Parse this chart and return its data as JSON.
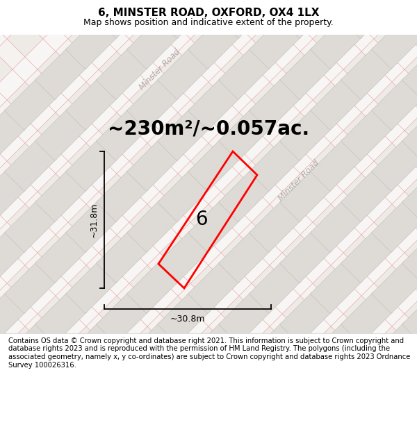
{
  "title": "6, MINSTER ROAD, OXFORD, OX4 1LX",
  "subtitle": "Map shows position and indicative extent of the property.",
  "area_label": "~230m²/~0.057ac.",
  "plot_number": "6",
  "width_label": "~30.8m",
  "height_label": "~31.8m",
  "footer": "Contains OS data © Crown copyright and database right 2021. This information is subject to Crown copyright and database rights 2023 and is reproduced with the permission of HM Land Registry. The polygons (including the associated geometry, namely x, y co-ordinates) are subject to Crown copyright and database rights 2023 Ordnance Survey 100026316.",
  "map_bg": "#eeebe7",
  "road_fill": "#f8f6f4",
  "road_edge": "#d4cec8",
  "building_fill": "#dedad5",
  "building_edge": "#c8c2bc",
  "lot_line_color": "#e8b8b8",
  "plot_stroke": "#ff0000",
  "title_fontsize": 11,
  "subtitle_fontsize": 9,
  "area_fontsize": 20,
  "plot_num_fontsize": 20,
  "dim_fontsize": 9,
  "footer_fontsize": 7.2,
  "road_label_color": "#b0aba5",
  "road_label_fontsize": 8.5
}
